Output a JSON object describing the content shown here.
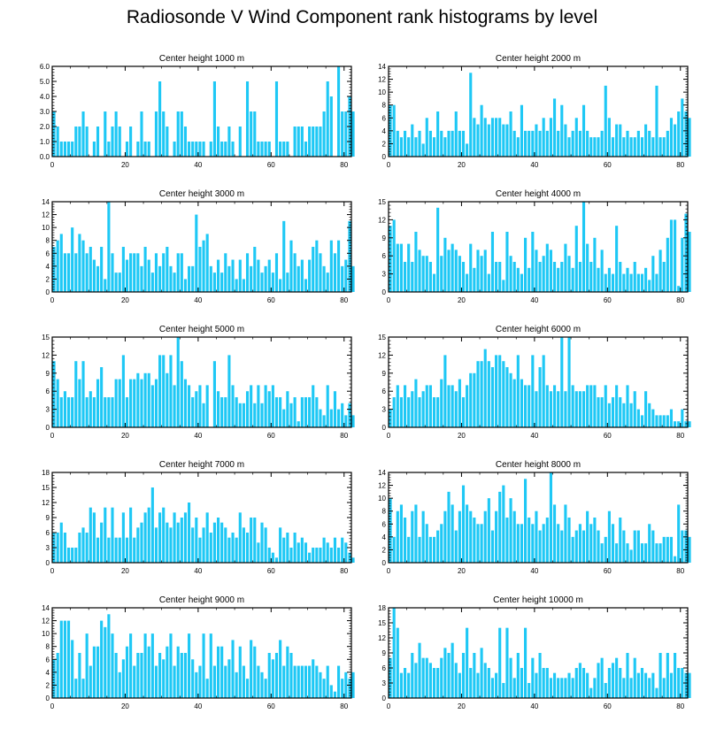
{
  "title": "Radiosonde V Wind Component rank histograms by level",
  "colors": {
    "bar": "#1ec8f5",
    "axis": "#000000"
  },
  "chart_data": [
    {
      "type": "bar",
      "title": "Center height 1000 m",
      "ylim": [
        0,
        6
      ],
      "yticks": [
        0,
        1,
        2,
        3,
        4,
        5,
        6
      ],
      "ytick_labels": [
        "0.0",
        "1.0",
        "2.0",
        "3.0",
        "4.0",
        "5.0",
        "6.0"
      ],
      "xticks": [
        0,
        20,
        40,
        60,
        80
      ],
      "xlim": [
        0,
        82
      ],
      "values": [
        3,
        2,
        1,
        1,
        1,
        1,
        2,
        2,
        3,
        2,
        0,
        1,
        2,
        0,
        3,
        1,
        2,
        3,
        2,
        0,
        1,
        2,
        0,
        1,
        3,
        1,
        1,
        0,
        3,
        5,
        3,
        2,
        0,
        1,
        3,
        3,
        2,
        1,
        1,
        1,
        1,
        1,
        0,
        1,
        5,
        2,
        1,
        1,
        2,
        1,
        0,
        2,
        0,
        5,
        3,
        3,
        1,
        1,
        1,
        1,
        0,
        5,
        1,
        1,
        1,
        0,
        2,
        2,
        2,
        1,
        2,
        2,
        2,
        2,
        3,
        5,
        4,
        0,
        6,
        3,
        3,
        4,
        3
      ]
    },
    {
      "type": "bar",
      "title": "Center height 2000 m",
      "ylim": [
        0,
        14
      ],
      "yticks": [
        0,
        2,
        4,
        6,
        8,
        10,
        12,
        14
      ],
      "xticks": [
        0,
        20,
        40,
        60,
        80
      ],
      "xlim": [
        0,
        82
      ],
      "values": [
        8,
        8,
        4,
        3,
        4,
        3,
        5,
        3,
        4,
        2,
        6,
        4,
        3,
        7,
        4,
        3,
        4,
        4,
        7,
        4,
        4,
        2,
        13,
        6,
        5,
        8,
        6,
        5,
        6,
        6,
        6,
        5,
        5,
        7,
        4,
        3,
        8,
        4,
        4,
        4,
        5,
        4,
        6,
        4,
        6,
        9,
        4,
        8,
        5,
        3,
        4,
        6,
        4,
        8,
        4,
        3,
        3,
        3,
        4,
        11,
        6,
        3,
        5,
        5,
        3,
        4,
        3,
        3,
        4,
        3,
        5,
        4,
        3,
        11,
        3,
        3,
        4,
        6,
        5,
        7,
        9,
        7,
        6
      ]
    },
    {
      "type": "bar",
      "title": "Center height 3000 m",
      "ylim": [
        0,
        14
      ],
      "yticks": [
        0,
        2,
        4,
        6,
        8,
        10,
        12,
        14
      ],
      "xticks": [
        0,
        20,
        40,
        60,
        80
      ],
      "xlim": [
        0,
        82
      ],
      "values": [
        7,
        8,
        9,
        6,
        6,
        10,
        6,
        9,
        8,
        6,
        7,
        5,
        4,
        7,
        2,
        14,
        6,
        3,
        3,
        7,
        5,
        6,
        6,
        6,
        4,
        7,
        5,
        3,
        6,
        4,
        6,
        7,
        4,
        3,
        6,
        6,
        2,
        4,
        4,
        12,
        7,
        8,
        9,
        4,
        3,
        5,
        3,
        6,
        4,
        5,
        2,
        5,
        2,
        6,
        4,
        7,
        5,
        3,
        4,
        5,
        3,
        6,
        2,
        11,
        3,
        8,
        6,
        4,
        5,
        2,
        5,
        7,
        8,
        6,
        4,
        3,
        8,
        6,
        8,
        4,
        5,
        11,
        4
      ]
    },
    {
      "type": "bar",
      "title": "Center height 4000 m",
      "ylim": [
        0,
        15
      ],
      "yticks": [
        0,
        3,
        6,
        9,
        12,
        15
      ],
      "xticks": [
        0,
        20,
        40,
        60,
        80
      ],
      "xlim": [
        0,
        82
      ],
      "values": [
        11,
        12,
        8,
        8,
        5,
        8,
        5,
        10,
        7,
        6,
        6,
        5,
        3,
        14,
        6,
        9,
        7,
        8,
        7,
        6,
        5,
        3,
        8,
        4,
        7,
        6,
        7,
        3,
        10,
        5,
        5,
        2,
        10,
        6,
        5,
        4,
        3,
        9,
        4,
        10,
        7,
        5,
        6,
        8,
        7,
        5,
        4,
        5,
        8,
        6,
        4,
        11,
        5,
        15,
        8,
        5,
        9,
        4,
        7,
        3,
        4,
        3,
        11,
        5,
        3,
        4,
        3,
        5,
        3,
        3,
        4,
        2,
        6,
        3,
        7,
        5,
        9,
        12,
        12,
        1,
        9,
        13,
        10
      ]
    },
    {
      "type": "bar",
      "title": "Center height 5000 m",
      "ylim": [
        0,
        15
      ],
      "yticks": [
        0,
        3,
        6,
        9,
        12,
        15
      ],
      "xticks": [
        0,
        20,
        40,
        60,
        80
      ],
      "xlim": [
        0,
        82
      ],
      "values": [
        11,
        8,
        5,
        6,
        5,
        5,
        11,
        8,
        11,
        5,
        6,
        5,
        8,
        10,
        5,
        5,
        5,
        8,
        8,
        12,
        5,
        8,
        8,
        9,
        8,
        9,
        9,
        7,
        8,
        12,
        12,
        9,
        12,
        7,
        15,
        11,
        8,
        7,
        5,
        6,
        7,
        4,
        7,
        0,
        11,
        6,
        5,
        5,
        12,
        7,
        5,
        4,
        4,
        6,
        7,
        4,
        7,
        4,
        7,
        6,
        7,
        5,
        5,
        3,
        6,
        4,
        5,
        1,
        5,
        5,
        5,
        7,
        5,
        3,
        2,
        7,
        3,
        6,
        3,
        4,
        2,
        4,
        2
      ]
    },
    {
      "type": "bar",
      "title": "Center height 6000 m",
      "ylim": [
        0,
        15
      ],
      "yticks": [
        0,
        3,
        6,
        9,
        12,
        15
      ],
      "xticks": [
        0,
        20,
        40,
        60,
        80
      ],
      "xlim": [
        0,
        82
      ],
      "values": [
        3,
        5,
        7,
        5,
        7,
        5,
        6,
        8,
        5,
        6,
        7,
        7,
        5,
        5,
        8,
        12,
        7,
        7,
        6,
        8,
        5,
        7,
        9,
        9,
        11,
        11,
        13,
        11,
        10,
        12,
        12,
        11,
        10,
        9,
        8,
        12,
        8,
        7,
        7,
        12,
        6,
        10,
        12,
        7,
        6,
        7,
        6,
        15,
        6,
        15,
        7,
        6,
        6,
        6,
        7,
        7,
        7,
        5,
        5,
        7,
        4,
        5,
        7,
        5,
        4,
        7,
        4,
        6,
        3,
        2,
        6,
        4,
        3,
        2,
        2,
        2,
        2,
        3,
        1,
        1,
        3,
        1,
        1
      ]
    },
    {
      "type": "bar",
      "title": "Center height 7000 m",
      "ylim": [
        0,
        18
      ],
      "yticks": [
        0,
        3,
        6,
        9,
        12,
        15,
        18
      ],
      "xticks": [
        0,
        20,
        40,
        60,
        80
      ],
      "xlim": [
        0,
        82
      ],
      "values": [
        6,
        6,
        8,
        6,
        3,
        3,
        3,
        6,
        7,
        6,
        11,
        10,
        5,
        8,
        11,
        5,
        11,
        5,
        5,
        10,
        5,
        11,
        5,
        7,
        8,
        10,
        11,
        15,
        7,
        10,
        11,
        8,
        7,
        10,
        8,
        9,
        10,
        12,
        7,
        9,
        5,
        7,
        10,
        6,
        8,
        9,
        8,
        7,
        5,
        6,
        5,
        10,
        7,
        6,
        9,
        9,
        4,
        8,
        7,
        3,
        2,
        1,
        7,
        5,
        6,
        3,
        6,
        4,
        5,
        4,
        2,
        3,
        3,
        3,
        5,
        4,
        3,
        5,
        3,
        5,
        4,
        2,
        1
      ]
    },
    {
      "type": "bar",
      "title": "Center height 8000 m",
      "ylim": [
        0,
        14
      ],
      "yticks": [
        0,
        2,
        4,
        6,
        8,
        10,
        12,
        14
      ],
      "xticks": [
        0,
        20,
        40,
        60,
        80
      ],
      "xlim": [
        0,
        82
      ],
      "values": [
        10,
        4,
        8,
        9,
        7,
        4,
        8,
        9,
        4,
        8,
        6,
        4,
        4,
        5,
        6,
        8,
        11,
        9,
        5,
        8,
        12,
        9,
        8,
        7,
        6,
        6,
        8,
        10,
        5,
        8,
        11,
        12,
        7,
        10,
        8,
        6,
        6,
        13,
        7,
        6,
        8,
        5,
        6,
        7,
        14,
        9,
        6,
        5,
        9,
        7,
        4,
        5,
        6,
        5,
        8,
        6,
        7,
        5,
        3,
        4,
        8,
        6,
        3,
        7,
        5,
        3,
        2,
        5,
        5,
        3,
        3,
        6,
        5,
        3,
        3,
        4,
        4,
        4,
        1,
        9,
        5,
        5,
        4
      ]
    },
    {
      "type": "bar",
      "title": "Center height 9000 m",
      "ylim": [
        0,
        14
      ],
      "yticks": [
        0,
        2,
        4,
        6,
        8,
        10,
        12,
        14
      ],
      "xticks": [
        0,
        20,
        40,
        60,
        80
      ],
      "xlim": [
        0,
        82
      ],
      "values": [
        6,
        7,
        12,
        12,
        12,
        9,
        3,
        7,
        3,
        10,
        5,
        8,
        8,
        12,
        11,
        13,
        10,
        7,
        4,
        6,
        8,
        10,
        5,
        7,
        7,
        10,
        8,
        10,
        5,
        7,
        6,
        8,
        10,
        5,
        8,
        7,
        7,
        10,
        6,
        4,
        5,
        10,
        3,
        10,
        5,
        8,
        8,
        5,
        6,
        9,
        4,
        8,
        5,
        3,
        9,
        8,
        5,
        4,
        3,
        7,
        6,
        7,
        9,
        5,
        8,
        7,
        5,
        5,
        5,
        5,
        5,
        6,
        5,
        4,
        3,
        5,
        2,
        1,
        5,
        3,
        4,
        3,
        4
      ]
    },
    {
      "type": "bar",
      "title": "Center height 10000 m",
      "ylim": [
        0,
        18
      ],
      "yticks": [
        0,
        3,
        6,
        9,
        12,
        15,
        18
      ],
      "xticks": [
        0,
        20,
        40,
        60,
        80
      ],
      "xlim": [
        0,
        82
      ],
      "values": [
        8,
        18,
        14,
        5,
        6,
        5,
        9,
        7,
        11,
        8,
        8,
        7,
        6,
        6,
        8,
        10,
        9,
        11,
        7,
        5,
        9,
        14,
        6,
        9,
        5,
        10,
        7,
        6,
        4,
        5,
        14,
        3,
        14,
        8,
        4,
        9,
        6,
        14,
        3,
        8,
        5,
        9,
        6,
        6,
        4,
        5,
        4,
        4,
        4,
        5,
        4,
        6,
        7,
        6,
        5,
        2,
        4,
        7,
        8,
        3,
        6,
        7,
        8,
        6,
        4,
        9,
        4,
        8,
        5,
        6,
        5,
        4,
        5,
        2,
        9,
        4,
        9,
        5,
        9,
        6,
        6,
        5,
        5
      ]
    }
  ]
}
